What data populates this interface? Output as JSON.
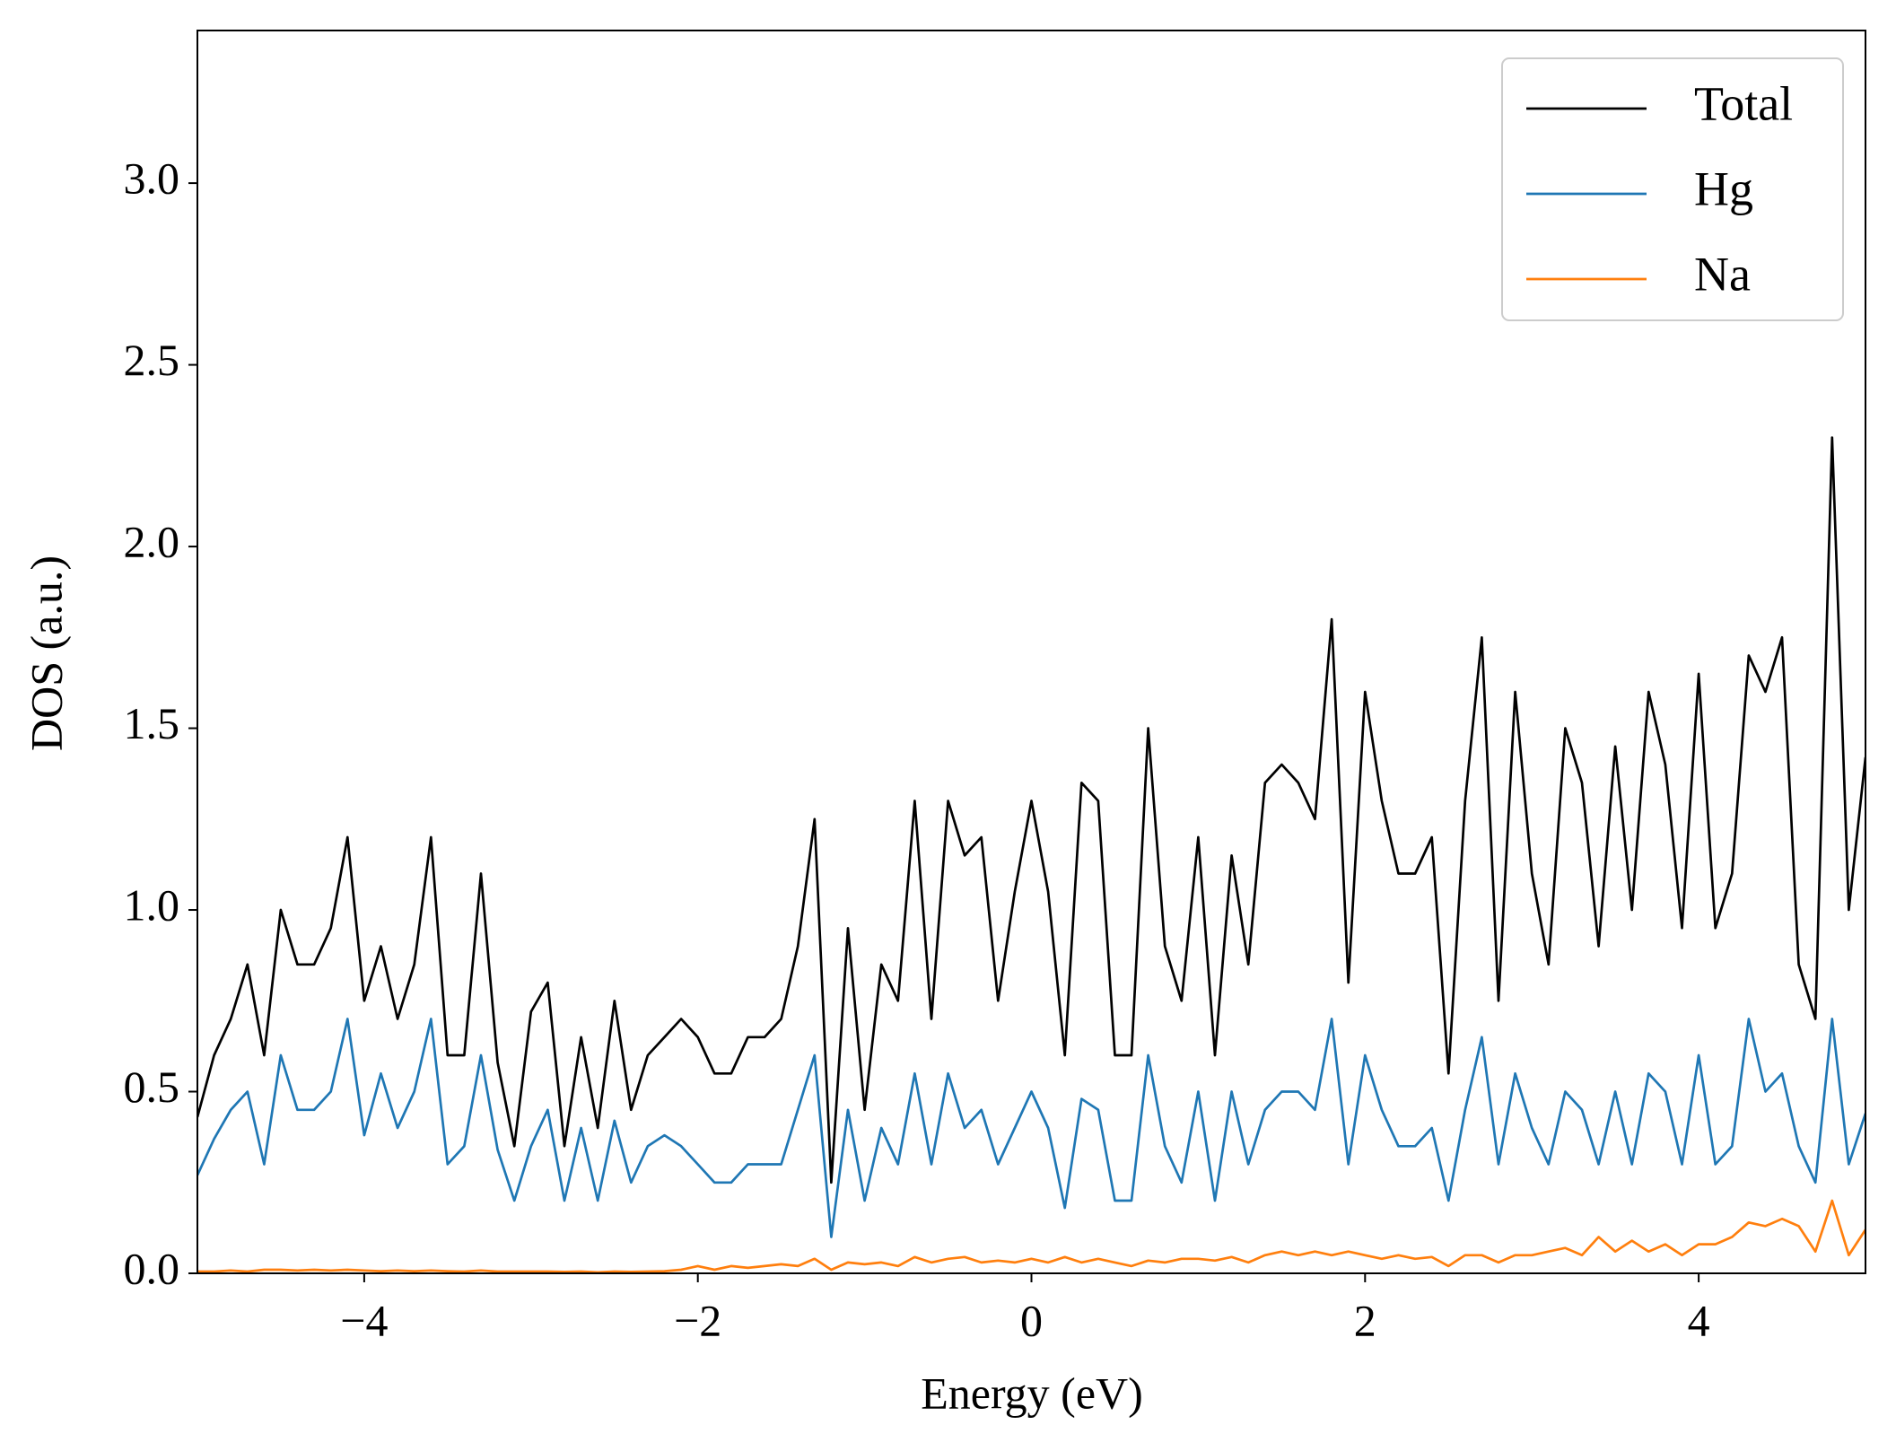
{
  "chart_data": {
    "type": "line",
    "xlabel": "Energy (eV)",
    "ylabel": "DOS (a.u.)",
    "x": [
      -5,
      -4.9,
      -4.8,
      -4.7,
      -4.6,
      -4.5,
      -4.4,
      -4.3,
      -4.2,
      -4.1,
      -4,
      -3.9,
      -3.8,
      -3.7,
      -3.6,
      -3.5,
      -3.4,
      -3.3,
      -3.2,
      -3.1,
      -3,
      -2.9,
      -2.8,
      -2.7,
      -2.6,
      -2.5,
      -2.4,
      -2.3,
      -2.2,
      -2.1,
      -2,
      -1.9,
      -1.8,
      -1.7,
      -1.6,
      -1.5,
      -1.4,
      -1.3,
      -1.2,
      -1.1,
      -1,
      -0.9,
      -0.8,
      -0.7,
      -0.6,
      -0.5,
      -0.4,
      -0.3,
      -0.2,
      -0.1,
      0,
      0.1,
      0.2,
      0.3,
      0.4,
      0.5,
      0.6,
      0.7,
      0.8,
      0.9,
      1,
      1.1,
      1.2,
      1.3,
      1.4,
      1.5,
      1.6,
      1.7,
      1.8,
      1.9,
      2,
      2.1,
      2.2,
      2.3,
      2.4,
      2.5,
      2.6,
      2.7,
      2.8,
      2.9,
      3,
      3.1,
      3.2,
      3.3,
      3.4,
      3.5,
      3.6,
      3.7,
      3.8,
      3.9,
      4,
      4.1,
      4.2,
      4.3,
      4.4,
      4.5,
      4.6,
      4.7,
      4.8,
      4.9,
      5
    ],
    "series": [
      {
        "name": "Total",
        "color": "#000000",
        "values": [
          0.43,
          0.6,
          0.7,
          0.85,
          0.6,
          1.0,
          0.85,
          0.85,
          0.95,
          1.2,
          0.75,
          0.9,
          0.7,
          0.85,
          1.2,
          0.6,
          0.6,
          1.1,
          0.58,
          0.35,
          0.72,
          0.8,
          0.35,
          0.65,
          0.4,
          0.75,
          0.45,
          0.6,
          0.65,
          0.7,
          0.65,
          0.55,
          0.55,
          0.65,
          0.65,
          0.7,
          0.9,
          1.25,
          0.25,
          0.95,
          0.45,
          0.85,
          0.75,
          1.3,
          0.7,
          1.3,
          1.15,
          1.2,
          0.75,
          1.05,
          1.3,
          1.05,
          0.6,
          1.35,
          1.3,
          0.6,
          0.6,
          1.5,
          0.9,
          0.75,
          1.2,
          0.6,
          1.15,
          0.85,
          1.35,
          1.4,
          1.35,
          1.25,
          1.8,
          0.8,
          1.6,
          1.3,
          1.1,
          1.1,
          1.2,
          0.55,
          1.3,
          1.75,
          0.75,
          1.6,
          1.1,
          0.85,
          1.5,
          1.35,
          0.9,
          1.45,
          1.0,
          1.6,
          1.4,
          0.95,
          1.65,
          0.95,
          1.1,
          1.7,
          1.6,
          1.75,
          0.85,
          0.7,
          2.3,
          1.0,
          1.42
        ]
      },
      {
        "name": "Hg",
        "color": "#1f77b4",
        "values": [
          0.27,
          0.37,
          0.45,
          0.5,
          0.3,
          0.6,
          0.45,
          0.45,
          0.5,
          0.7,
          0.38,
          0.55,
          0.4,
          0.5,
          0.7,
          0.3,
          0.35,
          0.6,
          0.34,
          0.2,
          0.35,
          0.45,
          0.2,
          0.4,
          0.2,
          0.42,
          0.25,
          0.35,
          0.38,
          0.35,
          0.3,
          0.25,
          0.25,
          0.3,
          0.3,
          0.3,
          0.45,
          0.6,
          0.1,
          0.45,
          0.2,
          0.4,
          0.3,
          0.55,
          0.3,
          0.55,
          0.4,
          0.45,
          0.3,
          0.4,
          0.5,
          0.4,
          0.18,
          0.48,
          0.45,
          0.2,
          0.2,
          0.6,
          0.35,
          0.25,
          0.5,
          0.2,
          0.5,
          0.3,
          0.45,
          0.5,
          0.5,
          0.45,
          0.7,
          0.3,
          0.6,
          0.45,
          0.35,
          0.35,
          0.4,
          0.2,
          0.45,
          0.65,
          0.3,
          0.55,
          0.4,
          0.3,
          0.5,
          0.45,
          0.3,
          0.5,
          0.3,
          0.55,
          0.5,
          0.3,
          0.6,
          0.3,
          0.35,
          0.7,
          0.5,
          0.55,
          0.35,
          0.25,
          0.7,
          0.3,
          0.44
        ]
      },
      {
        "name": "Na",
        "color": "#ff7f0e",
        "values": [
          0.005,
          0.005,
          0.008,
          0.005,
          0.01,
          0.01,
          0.008,
          0.01,
          0.008,
          0.01,
          0.008,
          0.006,
          0.008,
          0.006,
          0.008,
          0.006,
          0.005,
          0.008,
          0.005,
          0.005,
          0.005,
          0.005,
          0.004,
          0.005,
          0.003,
          0.005,
          0.004,
          0.005,
          0.006,
          0.01,
          0.02,
          0.01,
          0.02,
          0.015,
          0.02,
          0.025,
          0.02,
          0.04,
          0.01,
          0.03,
          0.025,
          0.03,
          0.02,
          0.045,
          0.03,
          0.04,
          0.045,
          0.03,
          0.035,
          0.03,
          0.04,
          0.03,
          0.045,
          0.03,
          0.04,
          0.03,
          0.02,
          0.035,
          0.03,
          0.04,
          0.04,
          0.035,
          0.045,
          0.03,
          0.05,
          0.06,
          0.05,
          0.06,
          0.05,
          0.06,
          0.05,
          0.04,
          0.05,
          0.04,
          0.045,
          0.02,
          0.05,
          0.05,
          0.03,
          0.05,
          0.05,
          0.06,
          0.07,
          0.05,
          0.1,
          0.06,
          0.09,
          0.06,
          0.08,
          0.05,
          0.08,
          0.08,
          0.1,
          0.14,
          0.13,
          0.15,
          0.13,
          0.06,
          0.2,
          0.05,
          0.12
        ]
      }
    ],
    "xlim": [
      -5,
      5
    ],
    "xticks": [
      {
        "value": -4,
        "label": "−4"
      },
      {
        "value": -2,
        "label": "−2"
      },
      0,
      2,
      4
    ],
    "ylim": [
      0,
      3.42
    ],
    "yticks": [
      {
        "value": 0,
        "label": "0.0"
      },
      {
        "value": 0.5,
        "label": "0.5"
      },
      {
        "value": 1,
        "label": "1.0"
      },
      {
        "value": 1.5,
        "label": "1.5"
      },
      {
        "value": 2,
        "label": "2.0"
      },
      {
        "value": 2.5,
        "label": "2.5"
      },
      {
        "value": 3,
        "label": "3.0"
      }
    ],
    "grid": false,
    "legend": "upper right"
  }
}
